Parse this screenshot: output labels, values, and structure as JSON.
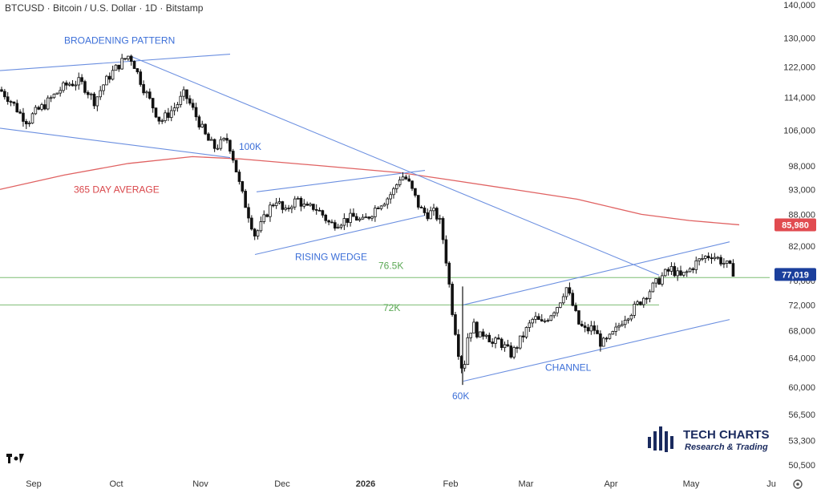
{
  "header": {
    "symbol_line": "BTCUSD · Bitcoin / U.S. Dollar · 1D · Bitstamp"
  },
  "chart_data": {
    "type": "candlestick",
    "symbol": "BTCUSD",
    "interval": "1D",
    "exchange": "Bitstamp",
    "y_scale": "log",
    "ylim": [
      49500,
      142000
    ],
    "y_ticks": [
      "140,000",
      "130,000",
      "122,000",
      "114,000",
      "106,000",
      "98,000",
      "93,000",
      "88,000",
      "82,000",
      "76,000",
      "72,000",
      "68,000",
      "64,000",
      "60,000",
      "56,500",
      "53,300",
      "50,500"
    ],
    "x_ticks": [
      "Sep",
      "Oct",
      "Nov",
      "Dec",
      "2026",
      "Feb",
      "Mar",
      "Apr",
      "May",
      "Ju"
    ],
    "last_price": "77,019",
    "ma_value": "85,980",
    "ma_label": "365 DAY AVERAGE",
    "close_path": [
      [
        0,
        116000
      ],
      [
        10,
        114000
      ],
      [
        18,
        112000
      ],
      [
        25,
        110000
      ],
      [
        35,
        108000
      ],
      [
        42,
        110000
      ],
      [
        55,
        112000
      ],
      [
        65,
        114000
      ],
      [
        75,
        116000
      ],
      [
        85,
        117500
      ],
      [
        100,
        118000
      ],
      [
        108,
        116000
      ],
      [
        118,
        113000
      ],
      [
        128,
        117000
      ],
      [
        138,
        120000
      ],
      [
        150,
        123000
      ],
      [
        160,
        125000
      ],
      [
        165,
        124000
      ],
      [
        172,
        120000
      ],
      [
        180,
        116000
      ],
      [
        190,
        112000
      ],
      [
        200,
        108000
      ],
      [
        210,
        110000
      ],
      [
        220,
        112000
      ],
      [
        230,
        115000
      ],
      [
        238,
        112000
      ],
      [
        248,
        108000
      ],
      [
        258,
        104000
      ],
      [
        268,
        102000
      ],
      [
        276,
        103000
      ],
      [
        284,
        104000
      ],
      [
        292,
        99000
      ],
      [
        300,
        93000
      ],
      [
        310,
        88000
      ],
      [
        318,
        84000
      ],
      [
        326,
        86000
      ],
      [
        335,
        89000
      ],
      [
        345,
        91000
      ],
      [
        355,
        88000
      ],
      [
        362,
        90000
      ],
      [
        372,
        91000
      ],
      [
        382,
        89000
      ],
      [
        392,
        89500
      ],
      [
        402,
        88000
      ],
      [
        412,
        86000
      ],
      [
        422,
        86500
      ],
      [
        432,
        87000
      ],
      [
        442,
        87500
      ],
      [
        452,
        86500
      ],
      [
        462,
        88000
      ],
      [
        472,
        90000
      ],
      [
        482,
        91000
      ],
      [
        492,
        93000
      ],
      [
        500,
        96000
      ],
      [
        508,
        95000
      ],
      [
        516,
        92000
      ],
      [
        524,
        89000
      ],
      [
        532,
        88000
      ],
      [
        540,
        88500
      ],
      [
        548,
        87000
      ],
      [
        553,
        83000
      ],
      [
        558,
        78000
      ],
      [
        563,
        72000
      ],
      [
        568,
        68000
      ],
      [
        573,
        64000
      ],
      [
        578,
        62000
      ],
      [
        583,
        67000
      ],
      [
        590,
        69000
      ],
      [
        598,
        67000
      ],
      [
        606,
        68000
      ],
      [
        614,
        66000
      ],
      [
        622,
        66500
      ],
      [
        630,
        65500
      ],
      [
        638,
        64500
      ],
      [
        646,
        66000
      ],
      [
        656,
        68000
      ],
      [
        666,
        70000
      ],
      [
        676,
        69000
      ],
      [
        686,
        70500
      ],
      [
        696,
        72000
      ],
      [
        706,
        75000
      ],
      [
        714,
        72000
      ],
      [
        722,
        69000
      ],
      [
        730,
        68000
      ],
      [
        740,
        68500
      ],
      [
        750,
        66000
      ],
      [
        758,
        66500
      ],
      [
        768,
        68000
      ],
      [
        778,
        70000
      ],
      [
        788,
        71000
      ],
      [
        798,
        72500
      ],
      [
        808,
        74000
      ],
      [
        818,
        75500
      ],
      [
        828,
        77000
      ],
      [
        838,
        78000
      ],
      [
        848,
        76500
      ],
      [
        858,
        77500
      ],
      [
        868,
        79000
      ],
      [
        878,
        80000
      ],
      [
        888,
        80500
      ],
      [
        898,
        79500
      ],
      [
        908,
        78500
      ],
      [
        918,
        77019
      ]
    ],
    "ma_path": [
      [
        0,
        93000
      ],
      [
        80,
        96000
      ],
      [
        160,
        98500
      ],
      [
        240,
        100000
      ],
      [
        300,
        99500
      ],
      [
        400,
        98000
      ],
      [
        500,
        96500
      ],
      [
        560,
        95000
      ],
      [
        640,
        93000
      ],
      [
        720,
        91000
      ],
      [
        800,
        88000
      ],
      [
        860,
        86800
      ],
      [
        922,
        85980
      ]
    ],
    "horizontal_levels": [
      {
        "label": "76.5K",
        "value": 76500
      },
      {
        "label": "72K",
        "value": 72000
      }
    ],
    "trendlines": [
      {
        "name": "broadening-upper",
        "from": [
          0,
          121000
        ],
        "to": [
          287,
          125500
        ]
      },
      {
        "name": "broadening-lower",
        "from": [
          0,
          106500
        ],
        "to": [
          287,
          99800
        ]
      },
      {
        "name": "main-downtrend",
        "from": [
          162,
          125000
        ],
        "to": [
          822,
          76900
        ]
      },
      {
        "name": "wedge-upper",
        "from": [
          320,
          92500
        ],
        "to": [
          530,
          97000
        ]
      },
      {
        "name": "wedge-lower",
        "from": [
          318,
          80500
        ],
        "to": [
          530,
          87800
        ]
      },
      {
        "name": "channel-upper",
        "from": [
          578,
          72000
        ],
        "to": [
          910,
          82800
        ]
      },
      {
        "name": "channel-lower",
        "from": [
          578,
          60800
        ],
        "to": [
          910,
          69700
        ]
      }
    ],
    "annotations": [
      {
        "text": "BROADENING PATTERN",
        "color": "#3c6fd8",
        "x": 80,
        "y": 128500
      },
      {
        "text": "100K",
        "color": "#3c6fd8",
        "x": 298,
        "y": 101500
      },
      {
        "text": "365 DAY AVERAGE",
        "color": "#d9464a",
        "x": 92,
        "y": 92300
      },
      {
        "text": "RISING WEDGE",
        "color": "#3c6fd8",
        "x": 368,
        "y": 79500
      },
      {
        "text": "76.5K",
        "color": "#5aa854",
        "x": 472,
        "y": 78000
      },
      {
        "text": "72K",
        "color": "#5aa854",
        "x": 478,
        "y": 71000
      },
      {
        "text": "CHANNEL",
        "color": "#3c6fd8",
        "x": 680,
        "y": 62200
      },
      {
        "text": "60K",
        "color": "#3c6fd8",
        "x": 564,
        "y": 58400
      }
    ]
  },
  "colors": {
    "trendline": "#6b8fe0",
    "ma": "#e06262",
    "level": "#7dbd73",
    "candle": "#111111",
    "price_badge": "#1b3f9c",
    "ma_badge": "#e14b50",
    "axis_text": "#333333"
  },
  "logo": {
    "title": "TECH CHARTS",
    "subtitle": "Research & Trading"
  },
  "tradingview_mark": "17",
  "settings_icon": "gear-icon"
}
